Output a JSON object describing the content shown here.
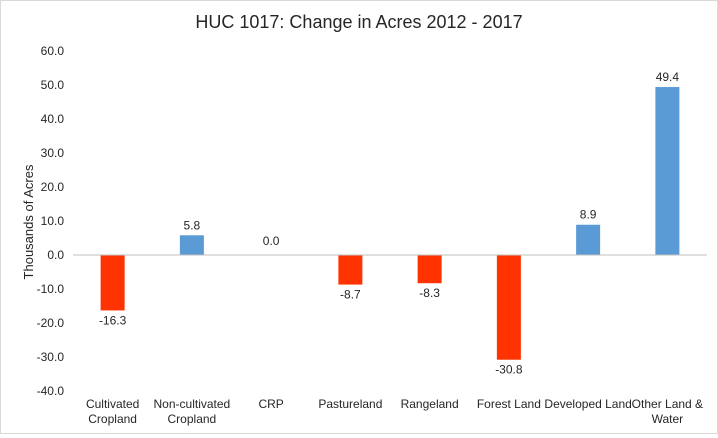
{
  "chart_data": {
    "type": "bar",
    "title": "HUC 1017: Change in Acres 2012 - 2017",
    "xlabel": "",
    "ylabel": "Thousands of Acres",
    "ylim": [
      -40,
      60
    ],
    "yticks": [
      60,
      50,
      40,
      30,
      20,
      10,
      0,
      -10,
      -20,
      -30,
      -40
    ],
    "ytick_labels": [
      "60.0",
      "50.0",
      "40.0",
      "30.0",
      "20.0",
      "10.0",
      "0.0",
      "-10.0",
      "-20.0",
      "-30.0",
      "-40.0"
    ],
    "grid": false,
    "legend": "none",
    "categories": [
      [
        "Cultivated",
        "Cropland"
      ],
      [
        "Non-cultivated",
        "Cropland"
      ],
      [
        "CRP"
      ],
      [
        "Pastureland"
      ],
      [
        "Rangeland"
      ],
      [
        "Forest Land"
      ],
      [
        "Developed Land"
      ],
      [
        "Other Land &",
        "Water"
      ]
    ],
    "values": [
      -16.3,
      5.8,
      0.0,
      -8.7,
      -8.3,
      -30.8,
      8.9,
      49.4
    ],
    "data_labels": [
      "-16.3",
      "5.8",
      "0.0",
      "-8.7",
      "-8.3",
      "-30.8",
      "8.9",
      "49.4"
    ],
    "colors": {
      "positive": "#5b9bd5",
      "negative": "#ff3300",
      "axis": "#bfbfbf",
      "text": "#262626"
    }
  }
}
